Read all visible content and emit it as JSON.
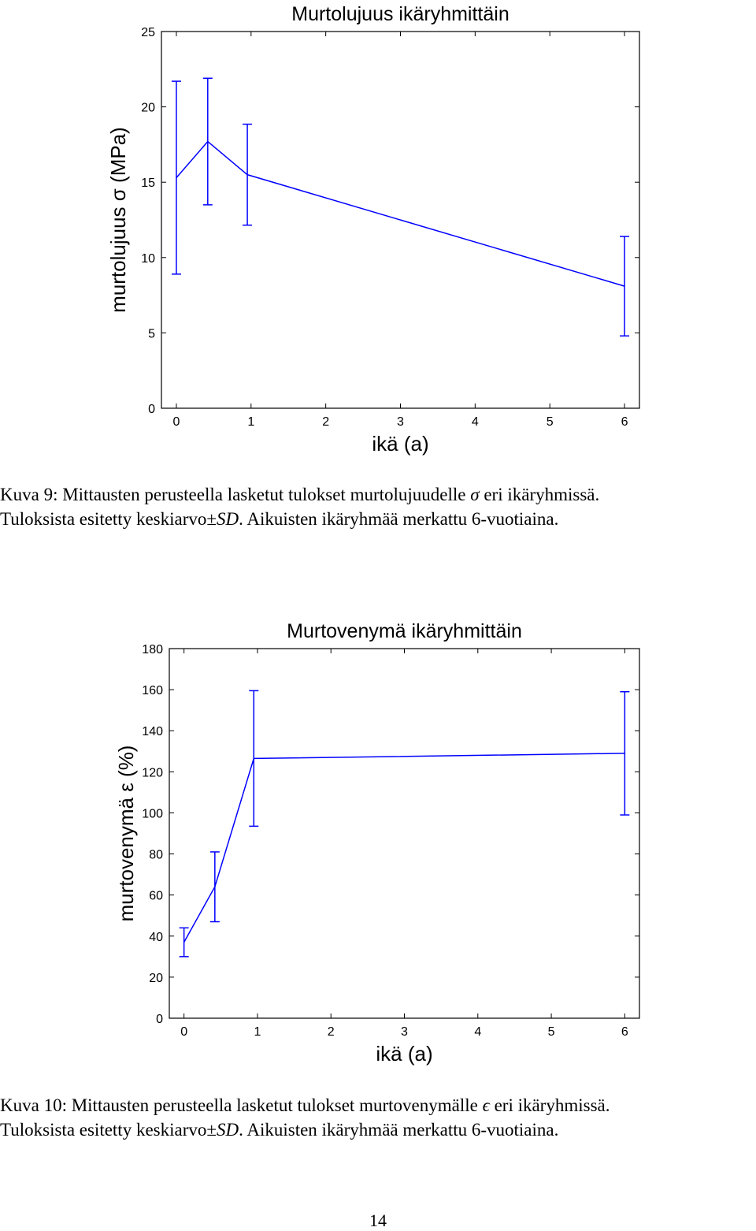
{
  "chart_data": [
    {
      "type": "line",
      "title": "Murtolujuus ikäryhmittäin",
      "xlabel": "ikä (a)",
      "ylabel": "murtolujuus σ (MPa)",
      "xlim": [
        -0.2,
        6.2
      ],
      "ylim": [
        0,
        25
      ],
      "xticks": [
        0,
        1,
        2,
        3,
        4,
        5,
        6
      ],
      "yticks": [
        0,
        5,
        10,
        15,
        20,
        25
      ],
      "grid": false,
      "series_color": "#0000ff",
      "points": [
        {
          "x": 0.0,
          "y": 15.3,
          "err": 6.4
        },
        {
          "x": 0.42,
          "y": 17.7,
          "err": 4.2
        },
        {
          "x": 0.95,
          "y": 15.5,
          "err": 3.35
        },
        {
          "x": 6.0,
          "y": 8.1,
          "err": 3.3
        }
      ]
    },
    {
      "type": "line",
      "title": "Murtovenymä ikäryhmittäin",
      "xlabel": "ikä (a)",
      "ylabel": "murtovenymä ε (%)",
      "xlim": [
        -0.2,
        6.2
      ],
      "ylim": [
        0,
        180
      ],
      "xticks": [
        0,
        1,
        2,
        3,
        4,
        5,
        6
      ],
      "yticks": [
        0,
        20,
        40,
        60,
        80,
        100,
        120,
        140,
        160,
        180
      ],
      "grid": false,
      "series_color": "#0000ff",
      "points": [
        {
          "x": 0.0,
          "y": 37,
          "err": 7
        },
        {
          "x": 0.42,
          "y": 64,
          "err": 17
        },
        {
          "x": 0.95,
          "y": 126.5,
          "err": 33
        },
        {
          "x": 6.0,
          "y": 129,
          "err": 30
        }
      ]
    }
  ],
  "captions": [
    {
      "line1_prefix": "Kuva 9: Mittausten perusteella lasketut tulokset murtolujuudelle ",
      "line1_symbol": "σ",
      "line1_suffix": " eri ikäryhmissä.",
      "line2_prefix": "Tuloksista esitetty keskiarvo±",
      "line2_symbol": "SD",
      "line2_suffix": ". Aikuisten ikäryhmää merkattu 6-vuotiaina."
    },
    {
      "line1_prefix": "Kuva 10: Mittausten perusteella lasketut tulokset murtovenymälle ",
      "line1_symbol": "ϵ",
      "line1_suffix": " eri ikäryhmissä.",
      "line2_prefix": "Tuloksista esitetty keskiarvo±",
      "line2_symbol": "SD",
      "line2_suffix": ". Aikuisten ikäryhmää merkattu 6-vuotiaina."
    }
  ],
  "page_number": "14"
}
